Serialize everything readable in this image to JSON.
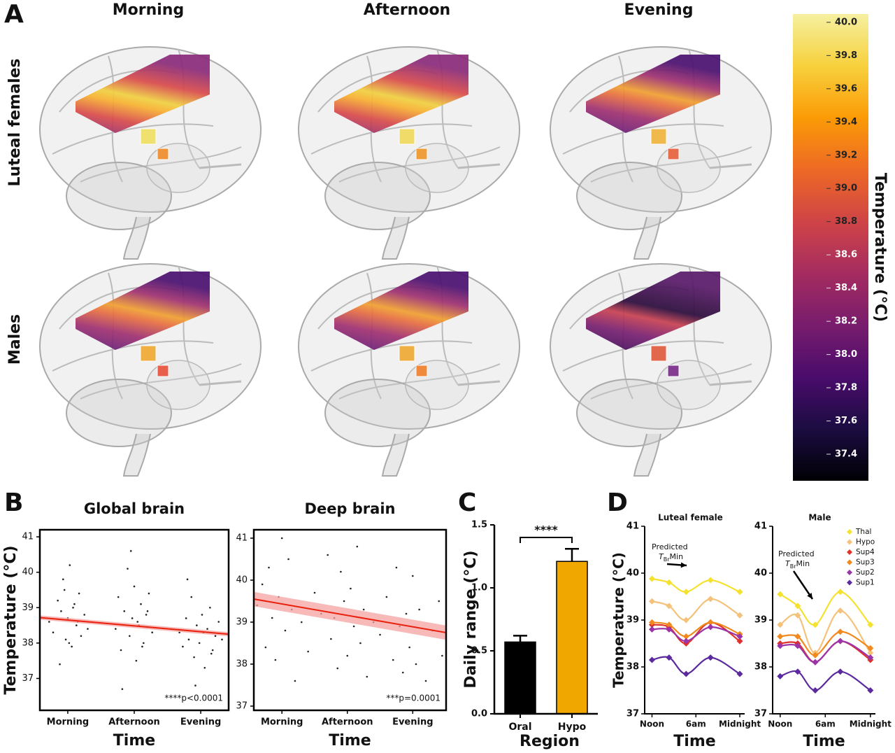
{
  "panel_letters": [
    "A",
    "B",
    "C",
    "D"
  ],
  "panel_a": {
    "columns": [
      "Morning",
      "Afternoon",
      "Evening"
    ],
    "rows": [
      "Luteal females",
      "Males"
    ]
  },
  "chart_data": [
    {
      "type": "colorbar",
      "title": "Temperature (°C)",
      "vlim": [
        37.24,
        40.05
      ],
      "ticks": [
        {
          "value": 40,
          "label": "40.0"
        },
        39.8,
        39.6,
        39.4,
        39.2,
        {
          "value": 39,
          "label": "39.0"
        },
        38.8,
        38.6,
        38.4,
        38.2,
        {
          "value": 38,
          "label": "38.0"
        },
        37.8,
        37.6,
        37.4
      ],
      "colormap": [
        "#000004",
        "#1b0c41",
        "#4a0c6b",
        "#781c6d",
        "#a52c60",
        "#cf4446",
        "#ed6925",
        "#fb9b06",
        "#f7d13d",
        "#f5f0a0"
      ]
    },
    {
      "type": "scatter",
      "title": "Global brain",
      "ylabel": "Temperature (°C)",
      "xlabel": "Time",
      "xlim": [
        0.58,
        3.42
      ],
      "ylim": [
        36.1,
        41.2
      ],
      "xticks": [
        {
          "value": 1,
          "label": "Morning"
        },
        {
          "value": 2,
          "label": "Afternoon"
        },
        {
          "value": 3,
          "label": "Evening"
        }
      ],
      "yticks": [
        37,
        38,
        39,
        40,
        41
      ],
      "point_color": "#222222",
      "x": [
        0.72,
        0.78,
        0.85,
        0.9,
        0.93,
        0.97,
        1.0,
        1.03,
        1.06,
        1.1,
        1.13,
        1.17,
        1.2,
        1.25,
        1.3,
        0.88,
        0.95,
        1.02,
        1.08,
        1.15,
        1.72,
        1.76,
        1.8,
        1.85,
        1.9,
        1.93,
        1.97,
        2.0,
        2.03,
        2.07,
        2.1,
        2.14,
        2.18,
        2.22,
        2.27,
        1.82,
        1.95,
        2.05,
        2.12,
        2.2,
        2.68,
        2.73,
        2.78,
        2.82,
        2.86,
        2.9,
        2.94,
        2.98,
        3.02,
        3.06,
        3.1,
        3.14,
        3.18,
        3.22,
        3.27,
        3.32,
        2.8,
        2.92,
        3.04,
        3.16
      ],
      "values": [
        38.6,
        38.3,
        39.2,
        38.9,
        39.8,
        38.1,
        38.7,
        40.2,
        37.9,
        39.1,
        38.5,
        39.4,
        38.2,
        38.8,
        38.4,
        37.4,
        39.5,
        38.0,
        39.0,
        38.6,
        38.4,
        39.3,
        37.8,
        38.9,
        40.1,
        38.2,
        38.7,
        39.6,
        37.5,
        38.5,
        39.1,
        38.0,
        38.8,
        39.4,
        38.3,
        36.7,
        40.6,
        38.6,
        37.9,
        38.9,
        38.3,
        37.9,
        38.7,
        38.1,
        39.3,
        37.6,
        38.5,
        38.0,
        38.8,
        37.3,
        38.4,
        39.0,
        37.8,
        38.2,
        38.6,
        38.1,
        39.8,
        36.8,
        38.3,
        37.7
      ],
      "fit": {
        "x": [
          0.58,
          3.42
        ],
        "values": [
          38.72,
          38.25
        ],
        "lower": [
          38.66,
          38.19
        ],
        "upper": [
          38.78,
          38.31
        ],
        "line_color": "#e8200c",
        "band_color": "#f4a3a0"
      },
      "annotation": "****p<0.0001"
    },
    {
      "type": "scatter",
      "title": "Deep brain",
      "xlabel": "Time",
      "xlim": [
        0.57,
        3.51
      ],
      "ylim": [
        36.9,
        41.2
      ],
      "xticks": [
        {
          "value": 1,
          "label": "Morning"
        },
        {
          "value": 2,
          "label": "Afternoon"
        },
        {
          "value": 3,
          "label": "Evening"
        }
      ],
      "yticks": [
        37,
        38,
        39,
        40,
        41
      ],
      "point_color": "#222222",
      "x": [
        0.62,
        0.7,
        0.75,
        0.8,
        0.85,
        0.9,
        0.95,
        1.0,
        1.05,
        1.1,
        1.15,
        1.2,
        1.3,
        1.4,
        1.5,
        1.6,
        1.7,
        1.75,
        1.8,
        1.85,
        1.9,
        1.95,
        2.0,
        2.05,
        2.1,
        2.15,
        2.2,
        2.25,
        2.3,
        2.4,
        2.5,
        2.6,
        2.7,
        2.75,
        2.8,
        2.85,
        2.9,
        2.95,
        3.0,
        3.05,
        3.1,
        3.2,
        3.3,
        3.4,
        3.45
      ],
      "values": [
        39.4,
        39.9,
        38.4,
        40.3,
        39.1,
        38.1,
        39.6,
        41.0,
        38.8,
        40.5,
        39.3,
        37.6,
        39.0,
        38.3,
        39.7,
        39.2,
        40.6,
        38.6,
        39.1,
        37.9,
        40.2,
        39.5,
        38.2,
        39.8,
        38.9,
        40.8,
        38.5,
        39.3,
        37.7,
        39.0,
        38.7,
        39.6,
        38.1,
        40.3,
        38.9,
        37.8,
        39.2,
        38.4,
        40.1,
        38.0,
        39.3,
        37.6,
        38.8,
        39.5,
        38.2
      ],
      "fit": {
        "x": [
          0.57,
          3.51
        ],
        "values": [
          39.55,
          38.75
        ],
        "lower": [
          39.38,
          38.58
        ],
        "upper": [
          39.72,
          38.92
        ],
        "line_color": "#e8200c",
        "band_color": "#f4a3a0"
      },
      "annotation": "***p=0.0001"
    },
    {
      "type": "bar",
      "ylabel": "Daily range (°C)",
      "xlabel": "Region",
      "categories": [
        "Oral",
        "Hypo"
      ],
      "values": [
        0.57,
        1.21
      ],
      "errors": [
        0.05,
        0.1
      ],
      "colors": [
        "#000000",
        "#f0a800"
      ],
      "ylim": [
        0,
        1.5
      ],
      "yticks": [
        {
          "value": 0,
          "label": "0.0"
        },
        0.5,
        {
          "value": 1,
          "label": "1.0"
        },
        1.5
      ],
      "significance": "****"
    },
    {
      "type": "line",
      "title": "Luteal female",
      "ylabel": "Temperature (°C)",
      "xlabel": "Time",
      "xlim": [
        -3,
        38
      ],
      "ylim": [
        37,
        41
      ],
      "xticks": [
        {
          "value": 0,
          "label": "Noon"
        },
        {
          "value": 18,
          "label": "6am"
        },
        {
          "value": 36,
          "label": "Midnight"
        }
      ],
      "yticks": [
        37,
        38,
        39,
        40,
        41
      ],
      "x": [
        0,
        7,
        14,
        24,
        36
      ],
      "series": [
        {
          "color": "#f5e12f",
          "values": [
            39.88,
            39.8,
            39.6,
            39.85,
            39.6
          ]
        },
        {
          "color": "#f4c27a",
          "values": [
            39.4,
            39.3,
            39.0,
            39.45,
            39.1
          ]
        },
        {
          "color": "#e0322b",
          "values": [
            38.9,
            38.85,
            38.5,
            38.95,
            38.55
          ]
        },
        {
          "color": "#f08a1e",
          "values": [
            38.95,
            38.9,
            38.65,
            38.95,
            38.7
          ]
        },
        {
          "color": "#9a34a8",
          "values": [
            38.8,
            38.8,
            38.55,
            38.85,
            38.65
          ]
        },
        {
          "color": "#5b2a9e",
          "values": [
            38.15,
            38.2,
            37.85,
            38.2,
            37.85
          ]
        }
      ],
      "annotation": {
        "text": "Predicted",
        "symbol": "T",
        "subscript": "Br",
        "suffix": "Min"
      }
    },
    {
      "type": "line",
      "title": "Male",
      "xlabel": "Time",
      "xlim": [
        -3,
        38
      ],
      "ylim": [
        37,
        41
      ],
      "xticks": [
        {
          "value": 0,
          "label": "Noon"
        },
        {
          "value": 18,
          "label": "6am"
        },
        {
          "value": 36,
          "label": "Midnight"
        }
      ],
      "yticks": [
        37,
        38,
        39,
        40,
        41
      ],
      "x": [
        0,
        7,
        14,
        24,
        36
      ],
      "legend": "upper right",
      "series": [
        {
          "name": "Thal",
          "color": "#f5e12f",
          "values": [
            39.55,
            39.3,
            38.9,
            39.6,
            38.9
          ]
        },
        {
          "name": "Hypo",
          "color": "#f4c27a",
          "values": [
            38.9,
            39.1,
            38.3,
            39.2,
            38.3
          ]
        },
        {
          "name": "Sup4",
          "color": "#e0322b",
          "values": [
            38.5,
            38.5,
            38.1,
            38.55,
            38.15
          ]
        },
        {
          "name": "Sup3",
          "color": "#f08a1e",
          "values": [
            38.65,
            38.65,
            38.25,
            38.75,
            38.4
          ]
        },
        {
          "name": "Sup2",
          "color": "#9a34a8",
          "values": [
            38.45,
            38.45,
            38.1,
            38.55,
            38.2
          ]
        },
        {
          "name": "Sup1",
          "color": "#5b2a9e",
          "values": [
            37.8,
            37.9,
            37.5,
            37.9,
            37.5
          ]
        }
      ],
      "annotation": {
        "text": "Predicted",
        "symbol": "T",
        "subscript": "Br",
        "suffix": "Min"
      }
    }
  ]
}
